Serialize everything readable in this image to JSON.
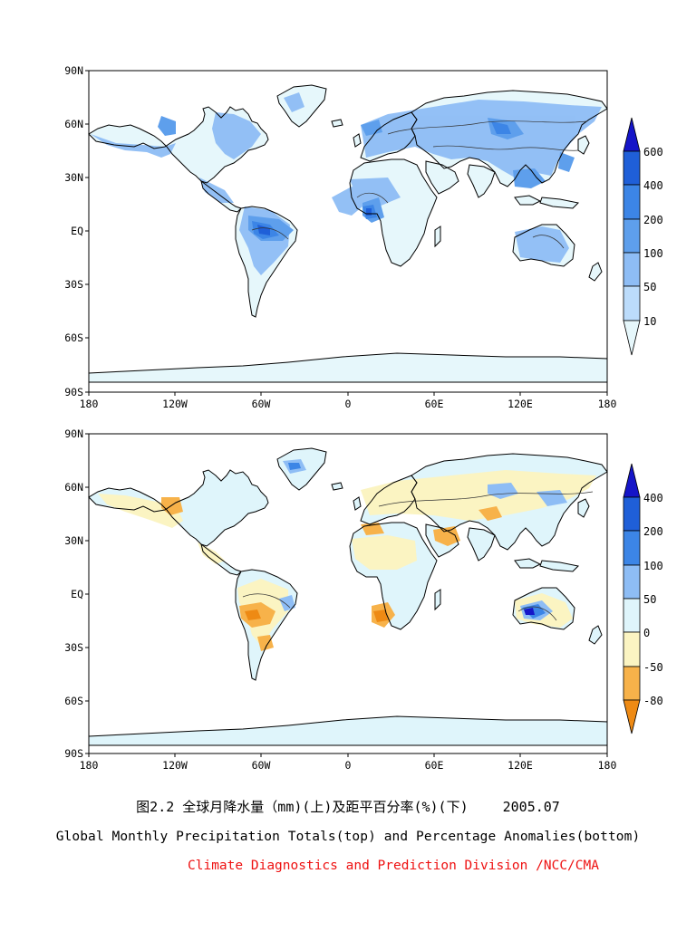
{
  "top_map": {
    "lat_labels": [
      "90N",
      "60N",
      "30N",
      "EQ",
      "30S",
      "60S",
      "90S"
    ],
    "lon_labels": [
      "180",
      "120W",
      "60W",
      "0",
      "60E",
      "120E",
      "180"
    ],
    "colorbar": {
      "levels": [
        "600",
        "400",
        "200",
        "100",
        "50",
        "10"
      ],
      "colors": [
        "#1515c8",
        "#1f5fd8",
        "#3c85e6",
        "#5e9fec",
        "#8ebdf5",
        "#bcdcfb",
        "#e6f7fb"
      ]
    }
  },
  "bottom_map": {
    "lat_labels": [
      "90N",
      "60N",
      "30N",
      "EQ",
      "30S",
      "60S",
      "90S"
    ],
    "lon_labels": [
      "180",
      "120W",
      "60W",
      "0",
      "60E",
      "120E",
      "180"
    ],
    "colorbar": {
      "levels": [
        "400",
        "200",
        "100",
        "50",
        "0",
        "-50",
        "-80"
      ],
      "colors": [
        "#1515c8",
        "#1f5fd8",
        "#3c85e6",
        "#8ebdf5",
        "#dff5fb",
        "#fbf4c2",
        "#f7b24a",
        "#ee8a14"
      ]
    }
  },
  "caption": {
    "line1_title": "图2.2  全球月降水量（mm)(上)及距平百分率(%)(下)",
    "line1_date": "2005.07",
    "line2": "Global Monthly Precipitation Totals(top) and Percentage Anomalies(bottom)",
    "line3": "Climate Diagnostics and Prediction Division /NCC/CMA"
  }
}
